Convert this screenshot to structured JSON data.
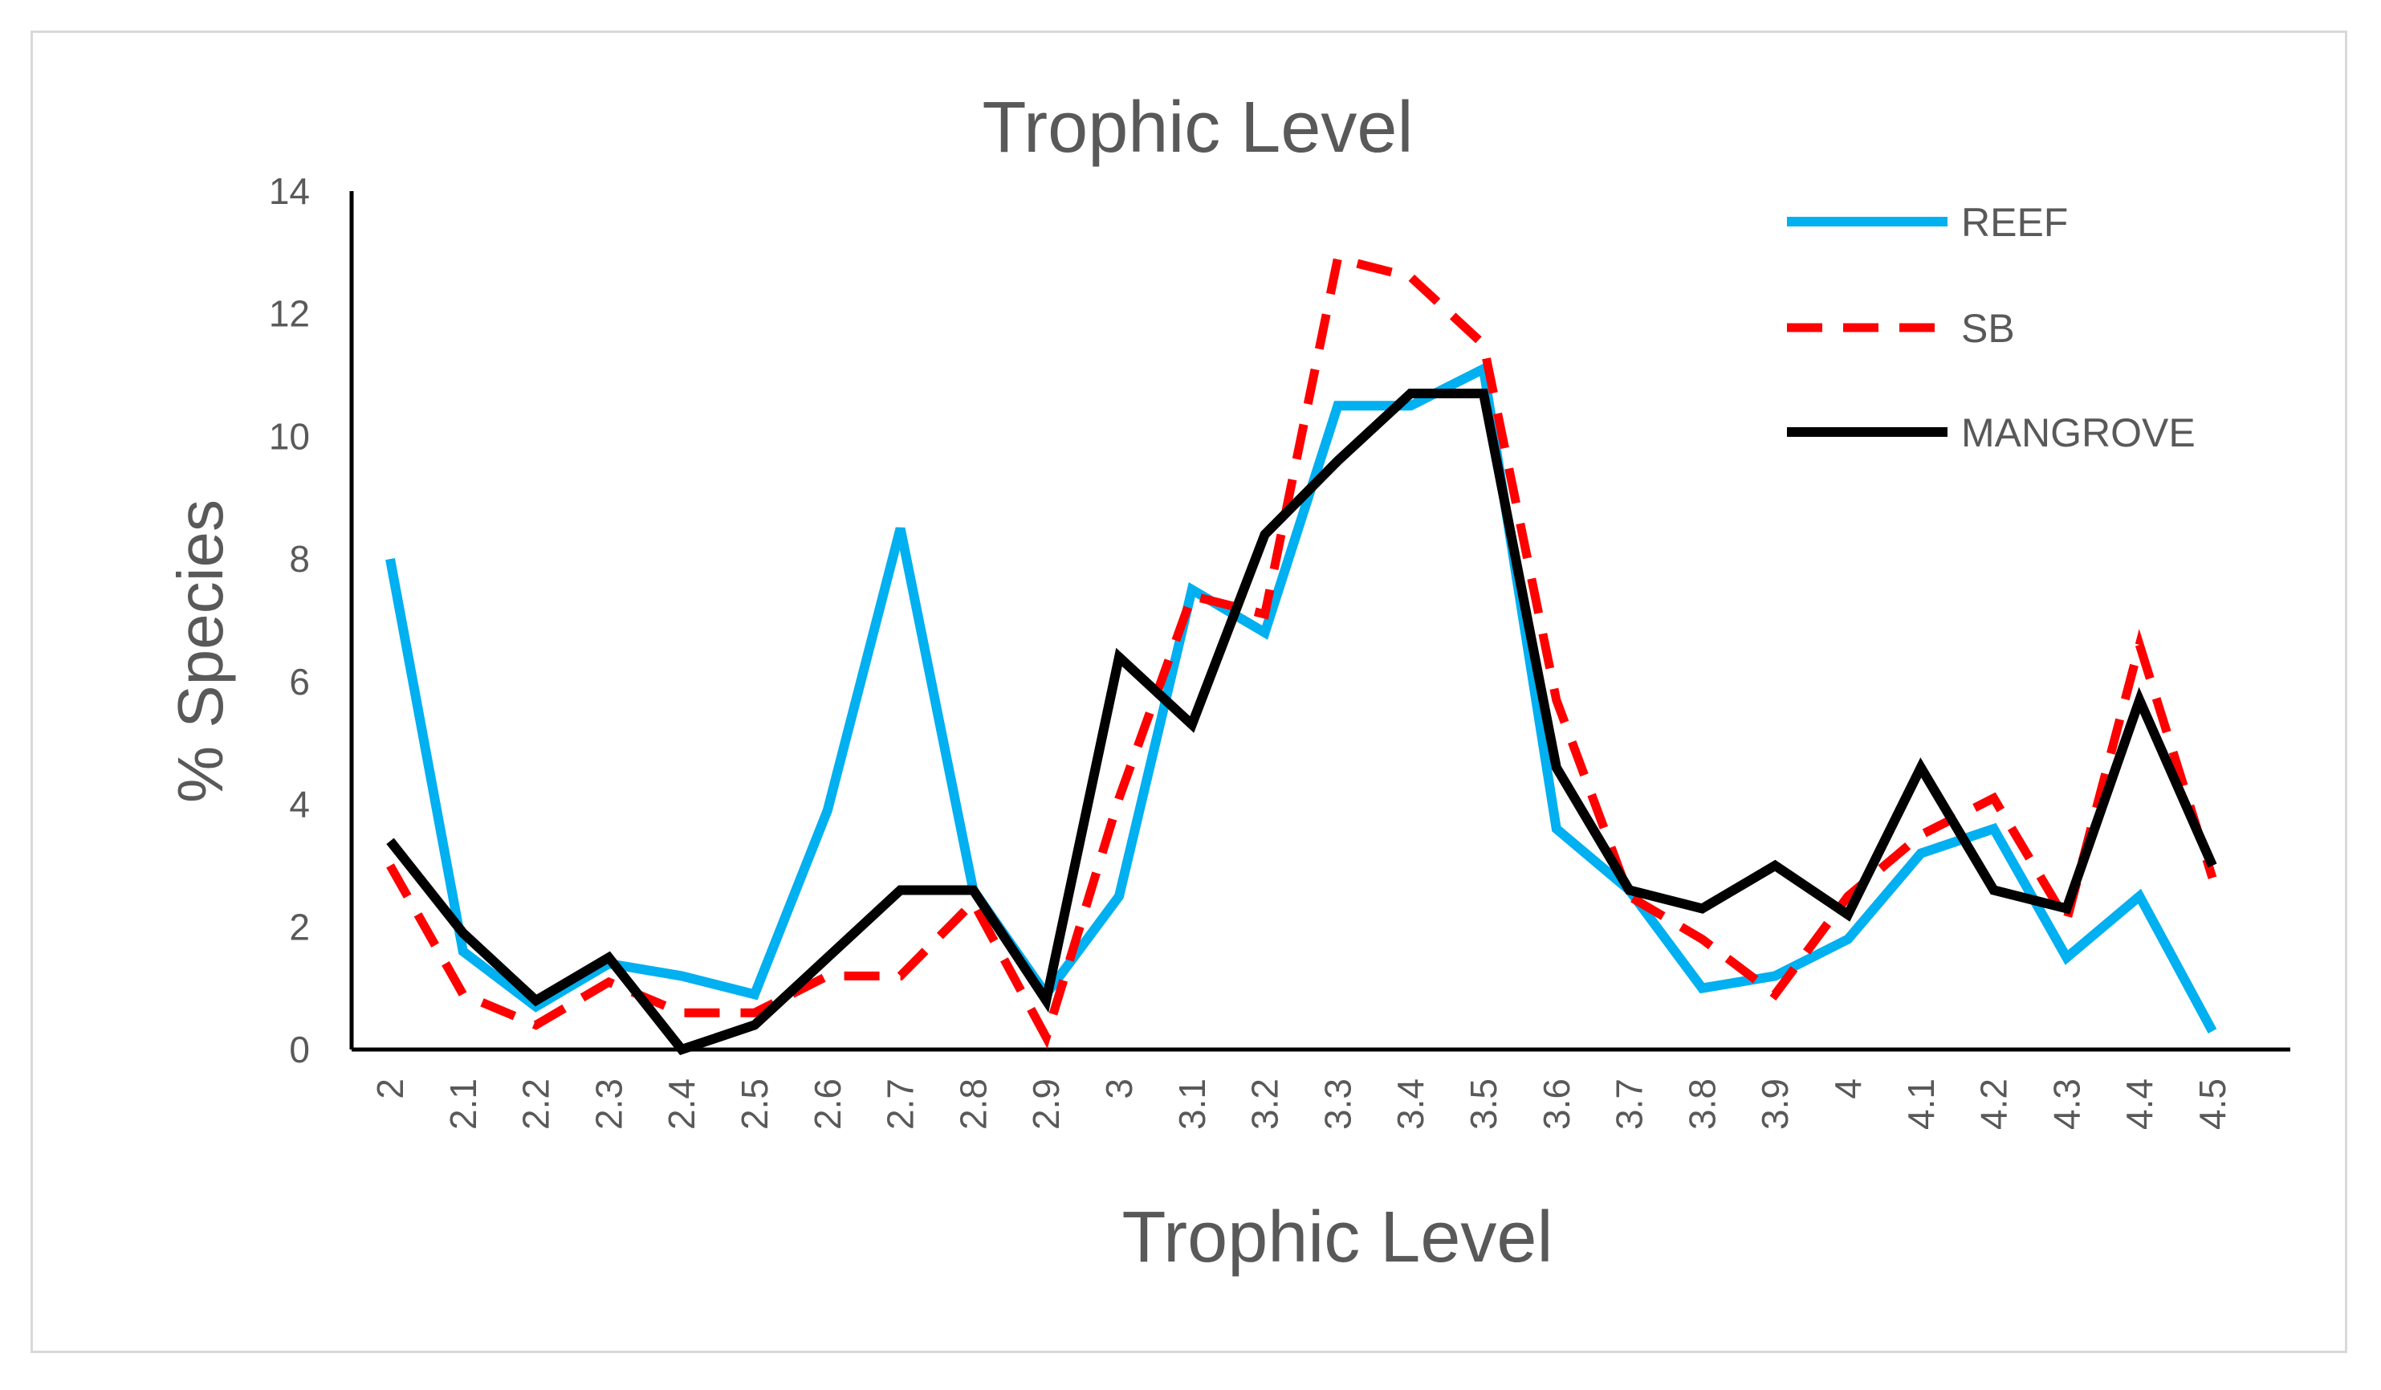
{
  "chart_data": {
    "type": "line",
    "title": "Trophic Level",
    "xlabel": "Trophic Level",
    "ylabel": "% Species",
    "ylim": [
      0,
      14
    ],
    "yticks": [
      "0",
      "2",
      "4",
      "6",
      "8",
      "10",
      "12",
      "14"
    ],
    "categories": [
      "2",
      "2.1",
      "2.2",
      "2.3",
      "2.4",
      "2.5",
      "2.6",
      "2.7",
      "2.8",
      "2.9",
      "3",
      "3.1",
      "3.2",
      "3.3",
      "3.4",
      "3.5",
      "3.6",
      "3.7",
      "3.8",
      "3.9",
      "4",
      "4.1",
      "4.2",
      "4.3",
      "4.4",
      "4.5"
    ],
    "grid": false,
    "legend_position": "top-right",
    "series": [
      {
        "name": "REEF",
        "color": "#00b0f0",
        "dash": "solid",
        "values": [
          8.0,
          1.6,
          0.7,
          1.4,
          1.2,
          0.9,
          3.9,
          8.5,
          2.6,
          0.9,
          2.5,
          7.5,
          6.8,
          10.5,
          10.5,
          11.1,
          3.6,
          2.6,
          1.0,
          1.2,
          1.8,
          3.2,
          3.6,
          1.5,
          2.5,
          0.3
        ]
      },
      {
        "name": "SB",
        "color": "#ff0000",
        "dash": "dashed",
        "values": [
          3.0,
          0.9,
          0.4,
          1.1,
          0.6,
          0.6,
          1.2,
          1.2,
          2.4,
          0.2,
          4.1,
          7.4,
          7.1,
          12.9,
          12.6,
          11.5,
          5.7,
          2.5,
          1.8,
          0.9,
          2.5,
          3.5,
          4.1,
          2.1,
          6.6,
          2.8
        ]
      },
      {
        "name": "MANGROVE",
        "color": "#000000",
        "dash": "solid",
        "values": [
          3.4,
          1.9,
          0.8,
          1.5,
          0.0,
          0.4,
          1.5,
          2.6,
          2.6,
          0.8,
          6.4,
          5.3,
          8.4,
          9.6,
          10.7,
          10.7,
          4.6,
          2.6,
          2.3,
          3.0,
          2.2,
          4.6,
          2.6,
          2.3,
          5.7,
          3.0
        ]
      }
    ]
  }
}
